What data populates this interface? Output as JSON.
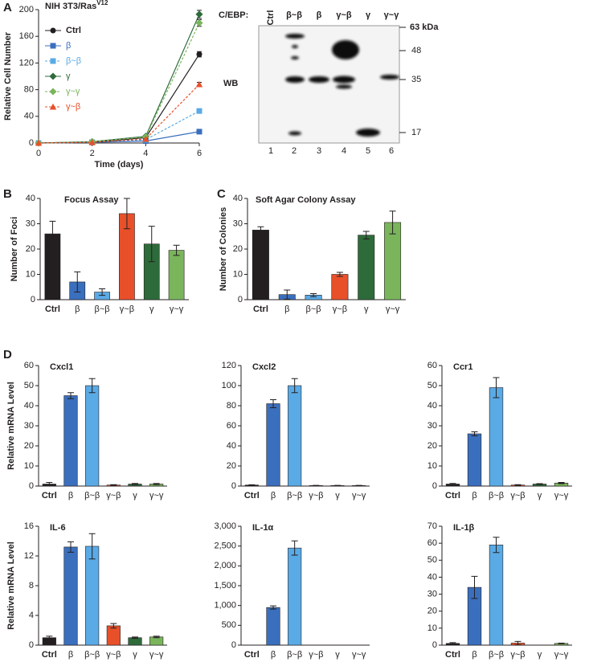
{
  "panel_labels": [
    "A",
    "B",
    "C",
    "D"
  ],
  "blot": {
    "label": "C/EBP:",
    "lanes": [
      "Ctrl",
      "β~β",
      "β",
      "γ~β",
      "γ",
      "γ~γ"
    ],
    "lane_numbers": [
      1,
      2,
      3,
      4,
      5,
      6
    ],
    "size_markers": [
      "63 kDa",
      "48",
      "35",
      "17"
    ],
    "method": "WB"
  },
  "chart_data": [
    {
      "type": "line",
      "title": "NIH 3T3/Ras",
      "title_superscript": "V12",
      "x": [
        0,
        2,
        4,
        6
      ],
      "xlim": [
        0,
        6
      ],
      "xticks": [
        0,
        2,
        4,
        6
      ],
      "ylim": [
        0,
        200
      ],
      "yticks": [
        0,
        40,
        80,
        120,
        160,
        200
      ],
      "xlabel": "Time (days)",
      "ylabel": "Relative Cell Number",
      "legend": "upper left",
      "series": [
        {
          "name": "Ctrl",
          "color": "#231f20",
          "marker": "circle",
          "dashed": false,
          "values": [
            0,
            1,
            8,
            133
          ],
          "errors": [
            0,
            0,
            1,
            4
          ]
        },
        {
          "name": "β",
          "color": "#3a6fbd",
          "marker": "square",
          "dashed": false,
          "values": [
            0,
            1,
            3,
            17
          ],
          "errors": [
            0,
            0,
            0.5,
            3
          ]
        },
        {
          "name": "β~β",
          "color": "#5aaae6",
          "marker": "square",
          "dashed": true,
          "values": [
            0,
            1,
            5,
            48
          ],
          "errors": [
            0,
            0,
            0.5,
            3
          ]
        },
        {
          "name": "γ",
          "color": "#2e6b3a",
          "marker": "diamond",
          "dashed": false,
          "values": [
            0,
            2,
            10,
            193
          ],
          "errors": [
            0,
            0,
            1,
            6
          ]
        },
        {
          "name": "γ~γ",
          "color": "#7ab55c",
          "marker": "diamond",
          "dashed": true,
          "values": [
            0,
            2,
            9,
            180
          ],
          "errors": [
            0,
            0,
            1,
            5
          ]
        },
        {
          "name": "γ~β",
          "color": "#e8502a",
          "marker": "triangle",
          "dashed": true,
          "values": [
            0,
            1,
            6,
            88
          ],
          "errors": [
            0,
            0,
            0.5,
            3
          ]
        }
      ]
    },
    {
      "type": "bar",
      "title": "Focus Assay",
      "ylabel": "Number of Foci",
      "categories": [
        "Ctrl",
        "β",
        "β~β",
        "γ~β",
        "γ",
        "γ~γ"
      ],
      "colors": [
        "#231f20",
        "#3a6fbd",
        "#5aaae6",
        "#e8502a",
        "#2e6b3a",
        "#7ab55c"
      ],
      "ylim": [
        0,
        40
      ],
      "yticks": [
        0,
        10,
        20,
        30,
        40
      ],
      "values": [
        26,
        7,
        3,
        34,
        22,
        19.5
      ],
      "errors": [
        5,
        4,
        1.3,
        6,
        7,
        2
      ]
    },
    {
      "type": "bar",
      "title": "Soft Agar Colony Assay",
      "ylabel": "Number of Colonies",
      "categories": [
        "Ctrl",
        "β",
        "β~β",
        "γ~β",
        "γ",
        "γ~γ"
      ],
      "colors": [
        "#231f20",
        "#3a6fbd",
        "#5aaae6",
        "#e8502a",
        "#2e6b3a",
        "#7ab55c"
      ],
      "ylim": [
        0,
        40
      ],
      "yticks": [
        0,
        10,
        20,
        30,
        40
      ],
      "values": [
        27.5,
        2,
        1.8,
        10,
        25.5,
        30.5
      ],
      "errors": [
        1.3,
        1.8,
        0.6,
        0.8,
        1.5,
        4.5
      ]
    },
    {
      "type": "bar",
      "title": "Cxcl1",
      "ylabel": "Relative mRNA Level",
      "categories": [
        "Ctrl",
        "β",
        "β~β",
        "γ~β",
        "γ",
        "γ~γ"
      ],
      "colors": [
        "#231f20",
        "#3a6fbd",
        "#5aaae6",
        "#e8502a",
        "#2e6b3a",
        "#7ab55c"
      ],
      "ylim": [
        0,
        60
      ],
      "yticks": [
        0,
        10,
        20,
        30,
        40,
        50,
        60
      ],
      "values": [
        1,
        45,
        50,
        0.5,
        1,
        1
      ],
      "errors": [
        0.8,
        1.5,
        3.5,
        0.2,
        0.3,
        0.3
      ]
    },
    {
      "type": "bar",
      "title": "Cxcl2",
      "categories": [
        "Ctrl",
        "β",
        "β~β",
        "γ~β",
        "γ",
        "γ~γ"
      ],
      "colors": [
        "#231f20",
        "#3a6fbd",
        "#5aaae6",
        "#e8502a",
        "#2e6b3a",
        "#7ab55c"
      ],
      "ylim": [
        0,
        120
      ],
      "yticks": [
        0,
        20,
        40,
        60,
        80,
        100,
        120
      ],
      "values": [
        1,
        82,
        100,
        0.5,
        0.5,
        0.5
      ],
      "errors": [
        0.3,
        4,
        7,
        0.2,
        0.2,
        0.2
      ]
    },
    {
      "type": "bar",
      "title": "Ccr1",
      "categories": [
        "Ctrl",
        "β",
        "β~β",
        "γ~β",
        "γ",
        "γ~γ"
      ],
      "colors": [
        "#231f20",
        "#3a6fbd",
        "#5aaae6",
        "#e8502a",
        "#2e6b3a",
        "#7ab55c"
      ],
      "ylim": [
        0,
        60
      ],
      "yticks": [
        0,
        10,
        20,
        30,
        40,
        50,
        60
      ],
      "values": [
        1,
        26,
        49,
        0.5,
        1,
        1.5
      ],
      "errors": [
        0.3,
        1,
        5,
        0.2,
        0.2,
        0.3
      ]
    },
    {
      "type": "bar",
      "title": "IL-6",
      "ylabel": "Relative mRNA Level",
      "categories": [
        "Ctrl",
        "β",
        "β~β",
        "γ~β",
        "γ",
        "γ~γ"
      ],
      "colors": [
        "#231f20",
        "#3a6fbd",
        "#5aaae6",
        "#e8502a",
        "#2e6b3a",
        "#7ab55c"
      ],
      "ylim": [
        0,
        16
      ],
      "yticks": [
        0,
        4,
        8,
        12,
        16
      ],
      "values": [
        1,
        13.2,
        13.3,
        2.6,
        1,
        1.1
      ],
      "errors": [
        0.2,
        0.7,
        1.7,
        0.3,
        0.1,
        0.1
      ]
    },
    {
      "type": "bar",
      "title": "IL-1α",
      "categories": [
        "Ctrl",
        "β",
        "β~β",
        "γ~β",
        "γ",
        "γ~γ"
      ],
      "colors": [
        "#231f20",
        "#3a6fbd",
        "#5aaae6",
        "#e8502a",
        "#2e6b3a",
        "#7ab55c"
      ],
      "ylim": [
        0,
        3000
      ],
      "yticks": [
        0,
        500,
        {
          "value": 1000,
          "label": "1,000"
        },
        {
          "value": 1500,
          "label": "1,500"
        },
        {
          "value": 2000,
          "label": "2,000"
        },
        {
          "value": 2500,
          "label": "2,500"
        },
        {
          "value": 3000,
          "label": "3,000"
        }
      ],
      "values": [
        0,
        950,
        2450,
        0,
        0,
        0
      ],
      "errors": [
        0,
        40,
        180,
        0,
        0,
        0
      ]
    },
    {
      "type": "bar",
      "title": "IL-1β",
      "categories": [
        "Ctrl",
        "β",
        "β~β",
        "γ~β",
        "γ",
        "γ~γ"
      ],
      "colors": [
        "#231f20",
        "#3a6fbd",
        "#5aaae6",
        "#e8502a",
        "#2e6b3a",
        "#7ab55c"
      ],
      "ylim": [
        0,
        70
      ],
      "yticks": [
        0,
        10,
        20,
        30,
        40,
        50,
        60,
        70
      ],
      "values": [
        1,
        34,
        59,
        1.2,
        0,
        1
      ],
      "errors": [
        0.5,
        6.5,
        4.5,
        1,
        0,
        0.2
      ]
    }
  ]
}
